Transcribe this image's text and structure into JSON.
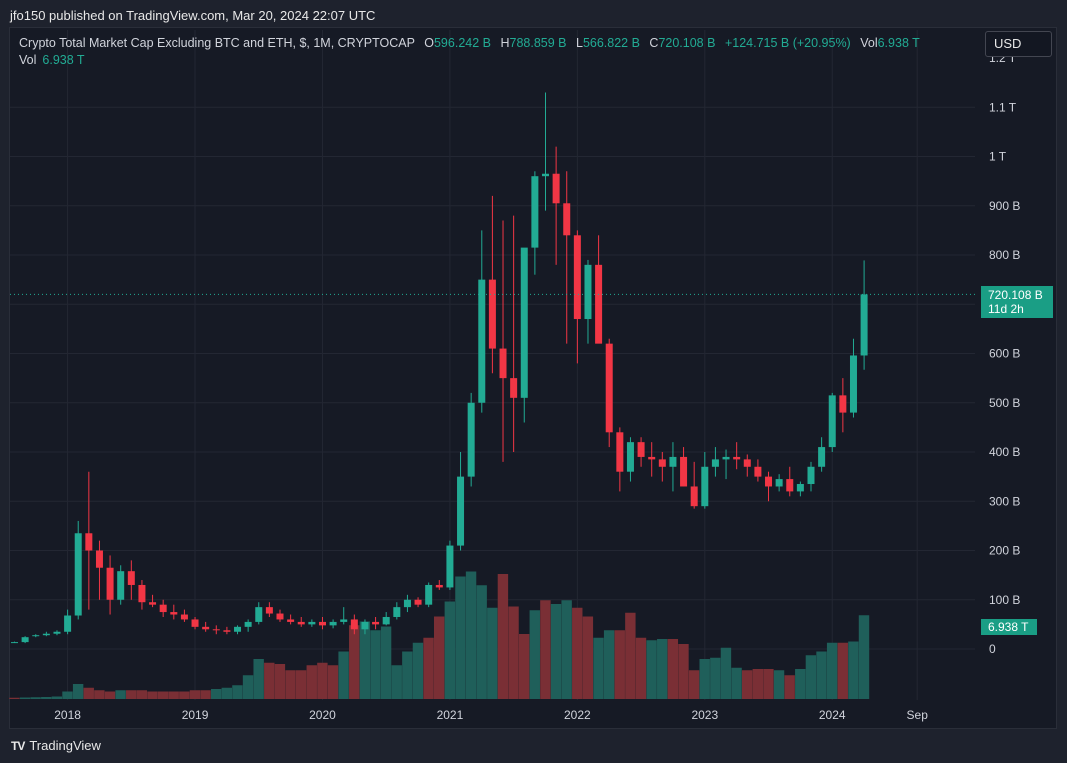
{
  "header": {
    "published": "jfo150 published on TradingView.com, Mar 20, 2024 22:07 UTC"
  },
  "legend": {
    "symbol": "Crypto Total Market Cap Excluding BTC and ETH, $, 1M, CRYPTOCAP",
    "o_label": "O",
    "o_value": "596.242 B",
    "h_label": "H",
    "h_value": "788.859 B",
    "l_label": "L",
    "l_value": "566.822 B",
    "c_label": "C",
    "c_value": "720.108 B",
    "change": "+124.715 B (+20.95%)",
    "vol_label": "Vol",
    "vol_value": "6.938 T"
  },
  "vol_legend": {
    "label": "Vol",
    "value": "6.938 T"
  },
  "currency_button": "USD",
  "price_tag": {
    "value": "720.108 B",
    "countdown": "11d 2h"
  },
  "vol_tag": "6.938 T",
  "brand": {
    "logo": "TV",
    "name": "TradingView"
  },
  "colors": {
    "up": "#22ab94",
    "down": "#f23645",
    "vol_up": "#1f5f5a",
    "vol_down": "#7a2f35",
    "grid": "#232733"
  },
  "chart_data": {
    "type": "candlestick",
    "y_unit": "B",
    "ylim": [
      -10,
      1210
    ],
    "y_ticks": [
      {
        "v": 0,
        "label": "0"
      },
      {
        "v": 100,
        "label": "100 B"
      },
      {
        "v": 200,
        "label": "200 B"
      },
      {
        "v": 300,
        "label": "300 B"
      },
      {
        "v": 400,
        "label": "400 B"
      },
      {
        "v": 500,
        "label": "500 B"
      },
      {
        "v": 600,
        "label": "600 B"
      },
      {
        "v": 700,
        "label": ""
      },
      {
        "v": 800,
        "label": "800 B"
      },
      {
        "v": 900,
        "label": "900 B"
      },
      {
        "v": 1000,
        "label": "1 T"
      },
      {
        "v": 1100,
        "label": "1.1 T"
      },
      {
        "v": 1200,
        "label": "1.2 T"
      }
    ],
    "x_ticks": [
      {
        "label": "2018",
        "index": 5
      },
      {
        "label": "2019",
        "index": 17
      },
      {
        "label": "2020",
        "index": 29
      },
      {
        "label": "2021",
        "index": 41
      },
      {
        "label": "2022",
        "index": 53
      },
      {
        "label": "2023",
        "index": 65
      },
      {
        "label": "2024",
        "index": 77
      },
      {
        "label": "Sep",
        "index": 85
      }
    ],
    "candles": [
      [
        13,
        15,
        13,
        14
      ],
      [
        14,
        26,
        12,
        24
      ],
      [
        26,
        30,
        24,
        28
      ],
      [
        28,
        35,
        26,
        31
      ],
      [
        31,
        38,
        28,
        35
      ],
      [
        35,
        80,
        30,
        68
      ],
      [
        68,
        260,
        60,
        235
      ],
      [
        235,
        360,
        80,
        200
      ],
      [
        200,
        220,
        100,
        165
      ],
      [
        165,
        190,
        70,
        100
      ],
      [
        100,
        170,
        90,
        158
      ],
      [
        158,
        180,
        100,
        130
      ],
      [
        130,
        140,
        80,
        95
      ],
      [
        95,
        110,
        85,
        90
      ],
      [
        90,
        100,
        65,
        75
      ],
      [
        75,
        90,
        60,
        70
      ],
      [
        70,
        80,
        55,
        60
      ],
      [
        60,
        65,
        40,
        45
      ],
      [
        45,
        55,
        35,
        40
      ],
      [
        40,
        48,
        30,
        38
      ],
      [
        38,
        45,
        30,
        35
      ],
      [
        35,
        48,
        30,
        45
      ],
      [
        45,
        60,
        35,
        55
      ],
      [
        55,
        95,
        50,
        85
      ],
      [
        85,
        95,
        65,
        72
      ],
      [
        72,
        80,
        55,
        60
      ],
      [
        60,
        70,
        50,
        55
      ],
      [
        55,
        65,
        45,
        50
      ],
      [
        50,
        60,
        45,
        55
      ],
      [
        55,
        65,
        40,
        48
      ],
      [
        48,
        60,
        42,
        55
      ],
      [
        55,
        85,
        50,
        60
      ],
      [
        60,
        70,
        30,
        40
      ],
      [
        40,
        60,
        30,
        55
      ],
      [
        55,
        65,
        40,
        50
      ],
      [
        50,
        75,
        48,
        65
      ],
      [
        65,
        95,
        60,
        85
      ],
      [
        85,
        110,
        75,
        100
      ],
      [
        100,
        105,
        85,
        90
      ],
      [
        90,
        135,
        85,
        130
      ],
      [
        130,
        140,
        120,
        125
      ],
      [
        125,
        220,
        120,
        210
      ],
      [
        210,
        400,
        200,
        350
      ],
      [
        350,
        520,
        330,
        500
      ],
      [
        500,
        850,
        480,
        750
      ],
      [
        750,
        920,
        560,
        610
      ],
      [
        610,
        870,
        380,
        550
      ],
      [
        550,
        880,
        400,
        510
      ],
      [
        510,
        810,
        460,
        815
      ],
      [
        815,
        970,
        760,
        960
      ],
      [
        960,
        1130,
        890,
        965
      ],
      [
        965,
        1020,
        780,
        905
      ],
      [
        905,
        970,
        620,
        840
      ],
      [
        840,
        850,
        580,
        670
      ],
      [
        670,
        790,
        620,
        780
      ],
      [
        780,
        840,
        630,
        620
      ],
      [
        620,
        630,
        410,
        440
      ],
      [
        440,
        450,
        320,
        360
      ],
      [
        360,
        430,
        340,
        420
      ],
      [
        420,
        430,
        370,
        390
      ],
      [
        390,
        420,
        350,
        385
      ],
      [
        385,
        400,
        340,
        370
      ],
      [
        370,
        420,
        320,
        390
      ],
      [
        390,
        410,
        330,
        330
      ],
      [
        330,
        380,
        285,
        290
      ],
      [
        290,
        400,
        285,
        370
      ],
      [
        370,
        410,
        350,
        385
      ],
      [
        385,
        405,
        345,
        390
      ],
      [
        390,
        420,
        365,
        385
      ],
      [
        385,
        395,
        350,
        370
      ],
      [
        370,
        385,
        340,
        350
      ],
      [
        350,
        360,
        300,
        330
      ],
      [
        330,
        355,
        320,
        345
      ],
      [
        345,
        370,
        310,
        320
      ],
      [
        320,
        340,
        310,
        335
      ],
      [
        335,
        380,
        320,
        370
      ],
      [
        370,
        430,
        360,
        410
      ],
      [
        410,
        520,
        400,
        515
      ],
      [
        515,
        550,
        440,
        480
      ],
      [
        480,
        630,
        470,
        596
      ],
      [
        596,
        789,
        567,
        720
      ]
    ],
    "volumes": [
      [
        0.05,
        0
      ],
      [
        0.06,
        1
      ],
      [
        0.07,
        1
      ],
      [
        0.08,
        1
      ],
      [
        0.1,
        1
      ],
      [
        0.3,
        1
      ],
      [
        0.6,
        1
      ],
      [
        0.45,
        0
      ],
      [
        0.35,
        0
      ],
      [
        0.3,
        0
      ],
      [
        0.35,
        1
      ],
      [
        0.35,
        0
      ],
      [
        0.35,
        0
      ],
      [
        0.3,
        0
      ],
      [
        0.3,
        0
      ],
      [
        0.3,
        0
      ],
      [
        0.3,
        0
      ],
      [
        0.35,
        0
      ],
      [
        0.35,
        0
      ],
      [
        0.4,
        1
      ],
      [
        0.45,
        1
      ],
      [
        0.55,
        1
      ],
      [
        0.95,
        1
      ],
      [
        1.6,
        1
      ],
      [
        1.45,
        0
      ],
      [
        1.4,
        0
      ],
      [
        1.15,
        0
      ],
      [
        1.15,
        0
      ],
      [
        1.35,
        0
      ],
      [
        1.45,
        0
      ],
      [
        1.35,
        0
      ],
      [
        1.9,
        1
      ],
      [
        2.95,
        0
      ],
      [
        3.1,
        1
      ],
      [
        2.75,
        1
      ],
      [
        2.9,
        1
      ],
      [
        1.35,
        1
      ],
      [
        1.9,
        1
      ],
      [
        2.25,
        1
      ],
      [
        2.45,
        0
      ],
      [
        3.3,
        0
      ],
      [
        3.9,
        1
      ],
      [
        4.9,
        1
      ],
      [
        5.1,
        1
      ],
      [
        4.55,
        1
      ],
      [
        3.65,
        1
      ],
      [
        5.0,
        0
      ],
      [
        3.7,
        0
      ],
      [
        2.6,
        0
      ],
      [
        3.55,
        1
      ],
      [
        3.95,
        0
      ],
      [
        3.8,
        1
      ],
      [
        3.95,
        1
      ],
      [
        3.65,
        0
      ],
      [
        3.3,
        0
      ],
      [
        2.45,
        1
      ],
      [
        2.75,
        1
      ],
      [
        2.75,
        0
      ],
      [
        3.45,
        0
      ],
      [
        2.45,
        0
      ],
      [
        2.35,
        1
      ],
      [
        2.4,
        1
      ],
      [
        2.4,
        0
      ],
      [
        2.2,
        0
      ],
      [
        1.15,
        0
      ],
      [
        1.6,
        1
      ],
      [
        1.65,
        1
      ],
      [
        2.05,
        1
      ],
      [
        1.25,
        1
      ],
      [
        1.15,
        0
      ],
      [
        1.2,
        0
      ],
      [
        1.2,
        0
      ],
      [
        1.15,
        1
      ],
      [
        0.95,
        0
      ],
      [
        1.2,
        1
      ],
      [
        1.75,
        1
      ],
      [
        1.9,
        1
      ],
      [
        2.25,
        1
      ],
      [
        2.25,
        0
      ],
      [
        2.3,
        1
      ],
      [
        3.35,
        1
      ]
    ]
  }
}
